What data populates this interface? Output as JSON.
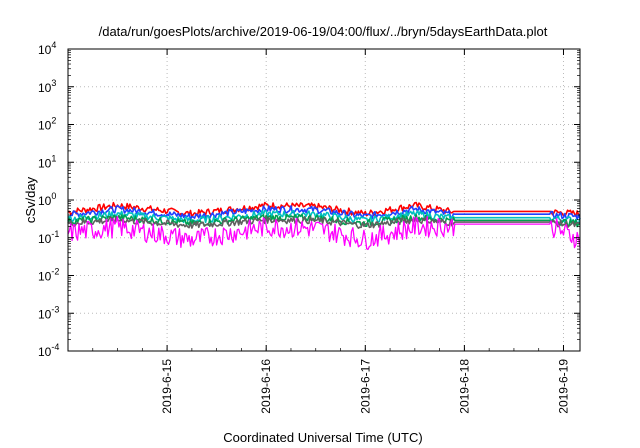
{
  "chart_data": {
    "type": "line",
    "title": "/data/run/goesPlots/archive/2019-06-19/04:00/flux/../bryn/5daysEarthData.plot",
    "xlabel": "Coordinated Universal Time (UTC)",
    "ylabel": "cSv/day",
    "yscale": "log",
    "ylim": [
      0.0001,
      10000
    ],
    "xlim": [
      "2019-06-14T00:00",
      "2019-06-19T04:00"
    ],
    "grid": true,
    "x_ticks": [
      "2019-6-15",
      "2019-6-16",
      "2019-6-17",
      "2019-6-18",
      "2019-6-19"
    ],
    "y_ticks": [
      {
        "base": "10",
        "exp": "-4"
      },
      {
        "base": "10",
        "exp": "-3"
      },
      {
        "base": "10",
        "exp": "-2"
      },
      {
        "base": "10",
        "exp": "-1"
      },
      {
        "base": "10",
        "exp": "0"
      },
      {
        "base": "10",
        "exp": "1"
      },
      {
        "base": "10",
        "exp": "2"
      },
      {
        "base": "10",
        "exp": "3"
      },
      {
        "base": "10",
        "exp": "4"
      }
    ],
    "gap": {
      "start": "2019-06-17T21:30",
      "end": "2019-06-18T21:00"
    },
    "series": [
      {
        "color": "#ff0000",
        "x": [
          "2019-06-14T00:00",
          "2019-06-14T12:00",
          "2019-06-15T06:00",
          "2019-06-16T00:00",
          "2019-06-16T12:00",
          "2019-06-17T00:00",
          "2019-06-17T12:00",
          "2019-06-17T21:30",
          "2019-06-18T21:00",
          "2019-06-19T04:00"
        ],
        "values": [
          0.5,
          0.75,
          0.45,
          0.75,
          0.7,
          0.45,
          0.75,
          0.5,
          0.5,
          0.45
        ]
      },
      {
        "color": "#1f3fff",
        "x": [
          "2019-06-14T00:00",
          "2019-06-14T12:00",
          "2019-06-15T06:00",
          "2019-06-16T00:00",
          "2019-06-16T12:00",
          "2019-06-17T00:00",
          "2019-06-17T12:00",
          "2019-06-17T21:30",
          "2019-06-18T21:00",
          "2019-06-19T04:00"
        ],
        "values": [
          0.42,
          0.6,
          0.38,
          0.6,
          0.58,
          0.38,
          0.6,
          0.42,
          0.42,
          0.38
        ]
      },
      {
        "color": "#00c0c0",
        "x": [
          "2019-06-14T00:00",
          "2019-06-14T12:00",
          "2019-06-15T06:00",
          "2019-06-16T00:00",
          "2019-06-16T12:00",
          "2019-06-17T00:00",
          "2019-06-17T12:00",
          "2019-06-17T21:30",
          "2019-06-18T21:00",
          "2019-06-19T04:00"
        ],
        "values": [
          0.33,
          0.45,
          0.3,
          0.45,
          0.44,
          0.3,
          0.45,
          0.34,
          0.34,
          0.3
        ]
      },
      {
        "color": "#00a050",
        "x": [
          "2019-06-14T00:00",
          "2019-06-14T12:00",
          "2019-06-15T06:00",
          "2019-06-16T00:00",
          "2019-06-16T12:00",
          "2019-06-17T00:00",
          "2019-06-17T12:00",
          "2019-06-17T21:30",
          "2019-06-18T21:00",
          "2019-06-19T04:00"
        ],
        "values": [
          0.28,
          0.36,
          0.25,
          0.36,
          0.35,
          0.25,
          0.36,
          0.29,
          0.29,
          0.25
        ]
      },
      {
        "color": "#606060",
        "x": [
          "2019-06-14T00:00",
          "2019-06-14T12:00",
          "2019-06-15T06:00",
          "2019-06-16T00:00",
          "2019-06-16T12:00",
          "2019-06-17T00:00",
          "2019-06-17T12:00",
          "2019-06-17T21:30",
          "2019-06-18T21:00",
          "2019-06-19T04:00"
        ],
        "values": [
          0.25,
          0.31,
          0.22,
          0.31,
          0.3,
          0.22,
          0.31,
          0.26,
          0.26,
          0.22
        ]
      },
      {
        "color": "#ff00ff",
        "x": [
          "2019-06-14T00:00",
          "2019-06-14T12:00",
          "2019-06-15T06:00",
          "2019-06-16T00:00",
          "2019-06-16T12:00",
          "2019-06-17T00:00",
          "2019-06-17T12:00",
          "2019-06-17T21:30",
          "2019-06-18T21:00",
          "2019-06-19T04:00"
        ],
        "values": [
          0.15,
          0.22,
          0.1,
          0.22,
          0.2,
          0.1,
          0.22,
          0.23,
          0.23,
          0.1
        ]
      }
    ]
  }
}
